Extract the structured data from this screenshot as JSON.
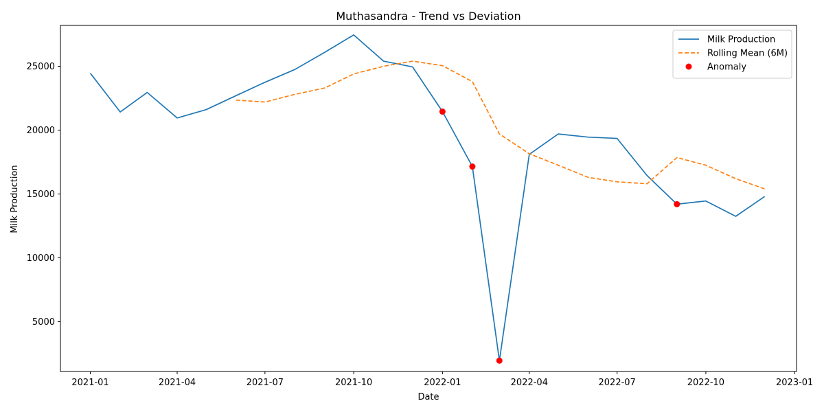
{
  "chart_data": {
    "type": "line",
    "title": "Muthasandra - Trend vs Deviation",
    "xlabel": "Date",
    "ylabel": "Milk Production",
    "x_ticks": [
      "2021-01",
      "2021-04",
      "2021-07",
      "2021-10",
      "2022-01",
      "2022-04",
      "2022-07",
      "2022-10",
      "2023-01"
    ],
    "y_ticks": [
      5000,
      10000,
      15000,
      20000,
      25000
    ],
    "ylim": [
      1100,
      28200
    ],
    "xlim": [
      "2020-12-01",
      "2023-01-03"
    ],
    "grid": false,
    "legend_position": "top-right",
    "series": [
      {
        "name": "Milk Production",
        "style": "solid",
        "color": "#1f77b4",
        "points": [
          [
            "2021-01-01",
            24450
          ],
          [
            "2021-02-01",
            21420
          ],
          [
            "2021-03-01",
            22950
          ],
          [
            "2021-04-01",
            20950
          ],
          [
            "2021-05-01",
            21600
          ],
          [
            "2021-06-01",
            22700
          ],
          [
            "2021-07-01",
            23750
          ],
          [
            "2021-08-01",
            24750
          ],
          [
            "2021-09-01",
            26100
          ],
          [
            "2021-10-01",
            27450
          ],
          [
            "2021-11-01",
            25400
          ],
          [
            "2021-12-01",
            24950
          ],
          [
            "2022-01-01",
            21450
          ],
          [
            "2022-02-01",
            17150
          ],
          [
            "2022-03-01",
            1950
          ],
          [
            "2022-04-01",
            18100
          ],
          [
            "2022-05-01",
            19700
          ],
          [
            "2022-06-01",
            19450
          ],
          [
            "2022-07-01",
            19350
          ],
          [
            "2022-08-01",
            16450
          ],
          [
            "2022-09-01",
            14200
          ],
          [
            "2022-10-01",
            14450
          ],
          [
            "2022-11-01",
            13250
          ],
          [
            "2022-12-01",
            14800
          ]
        ]
      },
      {
        "name": "Rolling Mean (6M)",
        "style": "dashed",
        "color": "#ff7f0e",
        "points": [
          [
            "2021-06-01",
            22350
          ],
          [
            "2021-07-01",
            22200
          ],
          [
            "2021-08-01",
            22800
          ],
          [
            "2021-09-01",
            23300
          ],
          [
            "2021-10-01",
            24400
          ],
          [
            "2021-11-01",
            25000
          ],
          [
            "2021-12-01",
            25400
          ],
          [
            "2022-01-01",
            25050
          ],
          [
            "2022-02-01",
            23800
          ],
          [
            "2022-03-01",
            19700
          ],
          [
            "2022-04-01",
            18150
          ],
          [
            "2022-05-01",
            17250
          ],
          [
            "2022-06-01",
            16300
          ],
          [
            "2022-07-01",
            15950
          ],
          [
            "2022-08-01",
            15800
          ],
          [
            "2022-09-01",
            17850
          ],
          [
            "2022-10-01",
            17250
          ],
          [
            "2022-11-01",
            16200
          ],
          [
            "2022-12-01",
            15400
          ]
        ]
      },
      {
        "name": "Anomaly",
        "style": "scatter",
        "color": "#ff0000",
        "points": [
          [
            "2022-01-01",
            21450
          ],
          [
            "2022-02-01",
            17150
          ],
          [
            "2022-03-01",
            1950
          ],
          [
            "2022-09-01",
            14200
          ]
        ]
      }
    ]
  }
}
